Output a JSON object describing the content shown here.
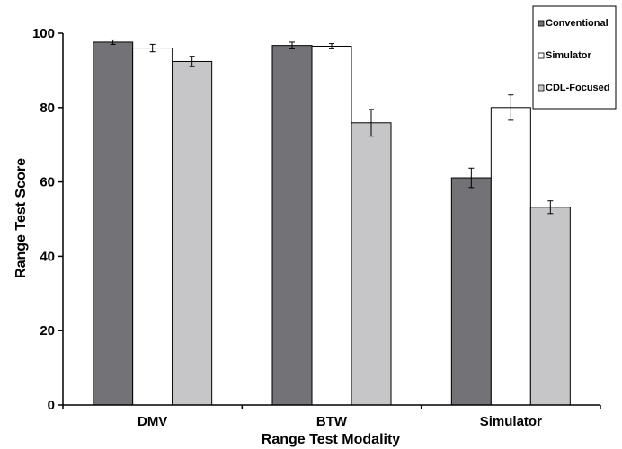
{
  "chart_data": {
    "type": "bar",
    "title": "",
    "xlabel": "Range Test Modality",
    "ylabel": "Range Test Score",
    "ylim": [
      0,
      100
    ],
    "yticks": [
      0,
      20,
      40,
      60,
      80,
      100
    ],
    "categories": [
      "DMV",
      "BTW",
      "Simulator"
    ],
    "series": [
      {
        "name": "Conventional",
        "color": "#727277",
        "values": [
          97.6,
          96.7,
          61.1
        ],
        "errors": [
          0.6,
          0.9,
          2.6
        ]
      },
      {
        "name": "Simulator",
        "color": "#ffffff",
        "values": [
          96.0,
          96.5,
          80.0
        ],
        "errors": [
          1.0,
          0.7,
          3.4
        ]
      },
      {
        "name": "CDL-Focused",
        "color": "#c6c6c8",
        "values": [
          92.4,
          75.9,
          53.2
        ],
        "errors": [
          1.4,
          3.6,
          1.7
        ]
      }
    ],
    "legend_position": "top-right",
    "grid": false
  }
}
